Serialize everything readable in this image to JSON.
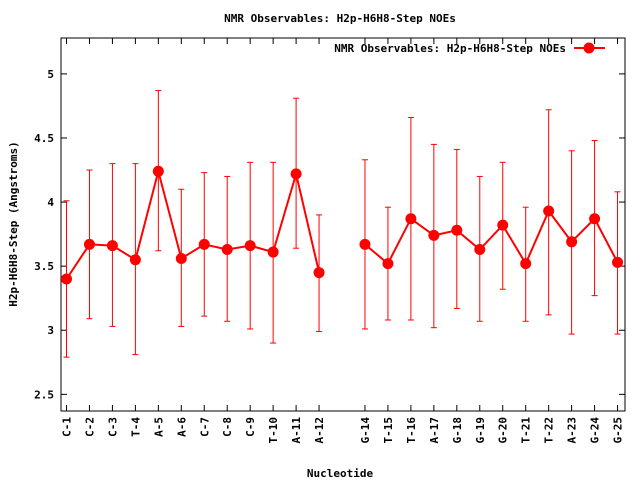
{
  "chart_data": {
    "type": "line",
    "title": "NMR Observables: H2p-H6H8-Step NOEs",
    "xlabel": "Nucleotide",
    "ylabel": "H2p-H6H8-Step (Angstroms)",
    "ylim": [
      2.37,
      5.28
    ],
    "yticks": [
      "2.5",
      "3",
      "3.5",
      "4",
      "4.5",
      "5"
    ],
    "grid": false,
    "legend_position": "top-right",
    "color": "#ff0000",
    "categories": [
      "C-1",
      "C-2",
      "C-3",
      "T-4",
      "A-5",
      "A-6",
      "C-7",
      "C-8",
      "C-9",
      "T-10",
      "A-11",
      "A-12",
      "G-14",
      "T-15",
      "T-16",
      "A-17",
      "G-18",
      "G-19",
      "G-20",
      "T-21",
      "T-22",
      "A-23",
      "G-24",
      "G-25"
    ],
    "positions": [
      1,
      2,
      3,
      4,
      5,
      6,
      7,
      8,
      9,
      10,
      11,
      12,
      14,
      15,
      16,
      17,
      18,
      19,
      20,
      21,
      22,
      23,
      24,
      25
    ],
    "series": [
      {
        "name": "NMR Observables: H2p-H6H8-Step NOEs",
        "values": [
          3.4,
          3.67,
          3.66,
          3.55,
          4.24,
          3.56,
          3.67,
          3.63,
          3.66,
          3.61,
          4.22,
          3.45,
          3.67,
          3.52,
          3.87,
          3.74,
          3.78,
          3.63,
          3.82,
          3.52,
          3.93,
          3.69,
          3.87,
          3.53
        ],
        "err_low": [
          2.79,
          3.09,
          3.03,
          2.81,
          3.62,
          3.03,
          3.11,
          3.07,
          3.01,
          2.9,
          3.64,
          2.99,
          3.01,
          3.08,
          3.08,
          3.02,
          3.17,
          3.07,
          3.32,
          3.07,
          3.12,
          2.97,
          3.27,
          2.97
        ],
        "err_high": [
          4.01,
          4.25,
          4.3,
          4.3,
          4.87,
          4.1,
          4.23,
          4.2,
          4.31,
          4.31,
          4.81,
          3.9,
          4.33,
          3.96,
          4.66,
          4.45,
          4.41,
          4.2,
          4.31,
          3.96,
          4.72,
          4.4,
          4.48,
          4.08
        ]
      }
    ]
  }
}
